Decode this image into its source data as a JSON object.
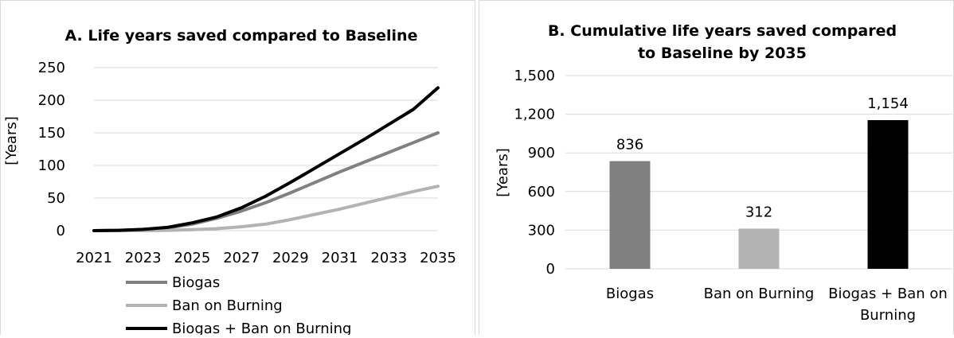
{
  "chart_data": [
    {
      "type": "line",
      "title": "A. Life years saved compared to Baseline",
      "xlabel": "",
      "ylabel": "[Years]",
      "x": [
        2021,
        2022,
        2023,
        2024,
        2025,
        2026,
        2027,
        2028,
        2029,
        2030,
        2031,
        2032,
        2033,
        2034,
        2035
      ],
      "x_ticks": [
        "2021",
        "2023",
        "2025",
        "2027",
        "2029",
        "2031",
        "2033",
        "2035"
      ],
      "ylim": [
        0,
        250
      ],
      "y_ticks": [
        "0",
        "50",
        "100",
        "150",
        "200",
        "250"
      ],
      "grid": true,
      "legend": "bottom",
      "series": [
        {
          "name": "Biogas",
          "color": "#808080",
          "values": [
            0,
            0.5,
            1.5,
            4,
            10,
            19,
            30,
            43,
            58,
            74,
            90,
            105,
            120,
            135,
            150
          ]
        },
        {
          "name": "Ban on Burning",
          "color": "#b3b3b3",
          "values": [
            0,
            0,
            0,
            0.5,
            1.5,
            3,
            6,
            10,
            17,
            25,
            33,
            42,
            51,
            60,
            68
          ]
        },
        {
          "name": "Biogas + Ban on Burning",
          "color": "#000000",
          "values": [
            0,
            0.5,
            2,
            5,
            12,
            21,
            35,
            53,
            74,
            96,
            118,
            140,
            163,
            186,
            219
          ]
        }
      ]
    },
    {
      "type": "bar",
      "title_lines": [
        "B. Cumulative life years saved compared",
        "to Baseline by 2035"
      ],
      "xlabel": "",
      "ylabel": "[Years]",
      "categories": [
        [
          "Biogas"
        ],
        [
          "Ban on Burning"
        ],
        [
          "Biogas + Ban on",
          "Burning"
        ]
      ],
      "values": [
        836,
        312,
        1154
      ],
      "value_labels": [
        "836",
        "312",
        "1,154"
      ],
      "colors": [
        "#808080",
        "#b3b3b3",
        "#000000"
      ],
      "ylim": [
        0,
        1500
      ],
      "y_ticks": [
        "0",
        "300",
        "600",
        "900",
        "1,200",
        "1,500"
      ],
      "grid": true
    }
  ]
}
